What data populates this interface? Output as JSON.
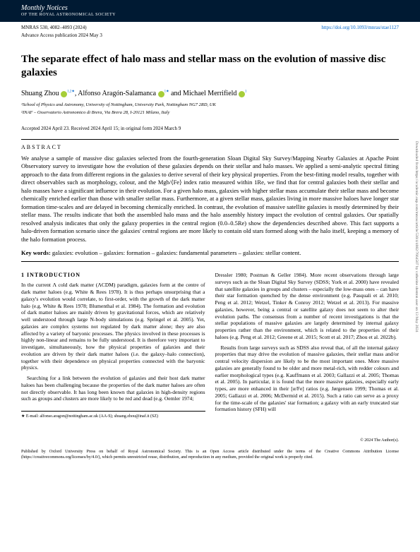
{
  "header": {
    "journal_name": "Monthly Notices",
    "journal_sub": "OF THE ROYAL ASTRONOMICAL SOCIETY",
    "citation": "MNRAS 530, 4082–4093 (2024)",
    "doi": "https://doi.org/10.1093/mnras/stae1127",
    "advance": "Advance Access publication 2024 May 3"
  },
  "title": "The separate effect of halo mass and stellar mass on the evolution of massive disc galaxies",
  "authors": {
    "a1": "Shuang Zhou",
    "a1_sup": "1,2★",
    "a2": "Alfonso Aragón-Salamanca",
    "a2_sup": "1★",
    "a3": "Michael Merrifield",
    "a3_sup": "1"
  },
  "affiliations": {
    "aff1": "¹School of Physics and Astronomy, University of Nottingham, University Park, Nottingham NG7 2RD, UK",
    "aff2": "²INAF – Osservatorio Astronomico di Brera, Via Brera 28, I-20121 Milano, Italy"
  },
  "accepted": "Accepted 2024 April 23. Received 2024 April 15; in original form 2024 March 9",
  "abstract_label": "ABSTRACT",
  "abstract": "We analyse a sample of massive disc galaxies selected from the fourth-generation Sloan Digital Sky Survey/Mapping Nearby Galaxies at Apache Point Observatory survey to investigate how the evolution of these galaxies depends on their stellar and halo masses. We applied a semi-analytic spectral fitting approach to the data from different regions in the galaxies to derive several of their key physical properties. From the best-fitting model results, together with direct observables such as morphology, colour, and the Mgb/⟨Fe⟩ index ratio measured within 1Re, we find that for central galaxies both their stellar and halo masses have a significant influence in their evolution. For a given halo mass, galaxies with higher stellar mass accumulate their stellar mass and become chemically enriched earlier than those with smaller stellar mass. Furthermore, at a given stellar mass, galaxies living in more massive haloes have longer star formation time-scales and are delayed in becoming chemically enriched. In contrast, the evolution of massive satellite galaxies is mostly determined by their stellar mass. The results indicate that both the assembled halo mass and the halo assembly history impact the evolution of central galaxies. Our spatially resolved analysis indicates that only the galaxy properties in the central region (0.0–0.5Re) show the dependencies described above. This fact supports a halo-driven formation scenario since the galaxies' central regions are more likely to contain old stars formed along with the halo itself, keeping a memory of the halo formation process.",
  "keywords_label": "Key words:",
  "keywords": "galaxies: evolution – galaxies: formation – galaxies: fundamental parameters – galaxies: stellar content.",
  "intro_head": "1 INTRODUCTION",
  "col1_p1": "In the current Λ cold dark matter (ΛCDM) paradigm, galaxies form at the centre of dark matter haloes (e.g. White & Rees 1978). It is thus perhaps unsurprising that a galaxy's evolution would correlate, to first-order, with the growth of the dark matter halo (e.g. White & Rees 1978; Blumenthal et al. 1984). The formation and evolution of dark matter haloes are mainly driven by gravitational forces, which are relatively well understood through large N-body simulations (e.g. Springel et al. 2005). Yet, galaxies are complex systems not regulated by dark matter alone; they are also affected by a variety of baryonic processes. The physics involved in these processes is highly non-linear and remains to be fully understood. It is therefore very important to investigate, simultaneously, how the physical properties of galaxies and their evolution are driven by their dark matter haloes (i.e. the galaxy–halo connection), together with their dependence on physical properties connected with the baryonic physics.",
  "col1_p2": "Searching for a link between the evolution of galaxies and their host dark matter haloes has been challenging because the properties of the dark matter haloes are often not directly observable. It has long been known that galaxies in high-density regions such as groups and clusters are more likely to be red and dead (e.g. Oemler 1974;",
  "col2_p1": "Dressler 1980; Postman & Geller 1984). More recent observations through large surveys such as the Sloan Digital Sky Survey (SDSS; York et al. 2000) have revealed that satellite galaxies in groups and clusters – especially the low-mass ones – can have their star formation quenched by the dense environment (e.g. Pasquali et al. 2010; Peng et al. 2012; Wetzel, Tinker & Conroy 2012; Wetzel et al. 2013). For massive galaxies, however, being a central or satellite galaxy does not seem to alter their evolution paths. The consensus from a number of recent investigations is that the stellar populations of massive galaxies are largely determined by internal galaxy properties rather than the environment, which is related to the properties of their haloes (e.g. Peng et al. 2012; Greene et al. 2015; Scott et al. 2017; Zhou et al. 2022b).",
  "col2_p2": "Results from large surveys such as SDSS also reveal that, of all the internal galaxy properties that may drive the evolution of massive galaxies, their stellar mass and/or central velocity dispersion are likely to be the most important ones. More massive galaxies are generally found to be older and more metal-rich, with redder colours and earlier morphological types (e.g. Kauffmann et al. 2003; Gallazzi et al. 2005; Thomas et al. 2005). In particular, it is found that the more massive galaxies, especially early types, are more enhanced in their [α/Fe] ratios (e.g. Jørgensen 1999; Thomas et al. 2005; Gallazzi et al. 2006; McDermid et al. 2015). Such a ratio can serve as a proxy for the time-scale of the galaxies' star formation; a galaxy with an early truncated star formation history (SFH) will",
  "footnote": "★ E-mail: alfonso.aragon@nottingham.ac.uk (AA-S); shuang.zhou@inaf.it (SZ)",
  "copyright_year": "© 2024 The Author(s).",
  "copyright_text": "Published by Oxford University Press on behalf of Royal Astronomical Society. This is an Open Access article distributed under the terms of the Creative Commons Attribution License (https://creativecommons.org/licenses/by/4.0/), which permits unrestricted reuse, distribution, and reproduction in any medium, provided the original work is properly cited.",
  "side": "Downloaded from https://academic.oup.com/mnras/article/530/4/4082/7664507 by catherine shenton user on 13 May 2024"
}
